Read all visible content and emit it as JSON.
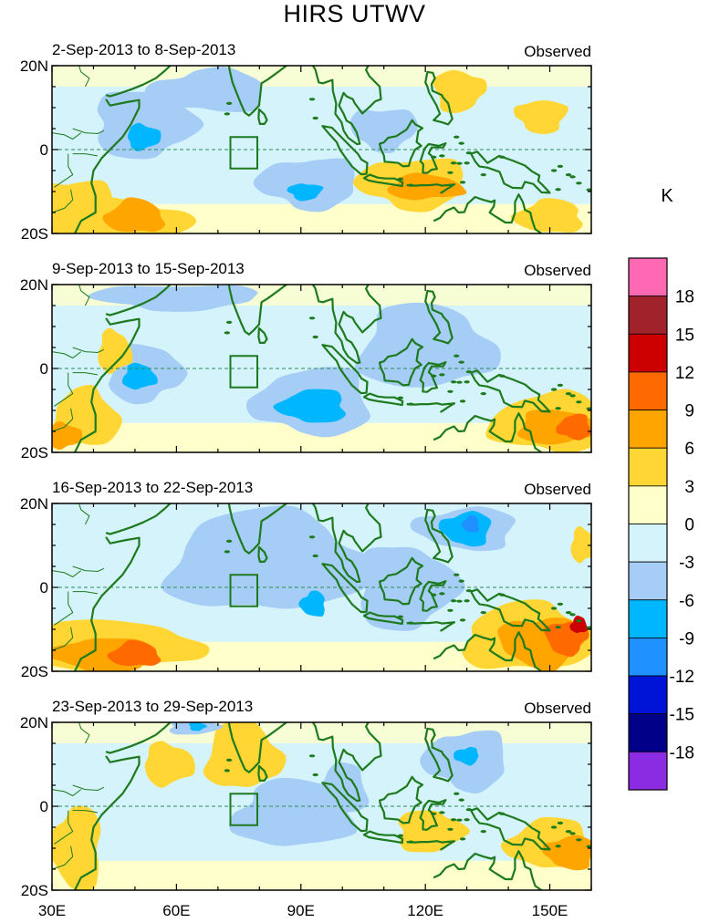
{
  "title": "HIRS UTWV",
  "units": "K",
  "colorbar": {
    "labels": [
      "18",
      "15",
      "12",
      "9",
      "6",
      "3",
      "0",
      "-3",
      "-6",
      "-9",
      "-12",
      "-15",
      "-18"
    ],
    "colors": [
      "#ff69b4",
      "#a0222a",
      "#cc0000",
      "#ff6a00",
      "#ffa500",
      "#ffd633",
      "#ffffcc",
      "#d4f3fb",
      "#a5cdf6",
      "#00b7ff",
      "#1e90ff",
      "#0014d8",
      "#000088",
      "#8b2be2"
    ]
  },
  "axes": {
    "x_ticks": [
      "30E",
      "60E",
      "90E",
      "120E",
      "150E"
    ],
    "y_ticks": [
      "20N",
      "0",
      "20S"
    ]
  },
  "panels": [
    {
      "period": "2-Sep-2013 to 8-Sep-2013",
      "label": "Observed"
    },
    {
      "period": "9-Sep-2013 to 15-Sep-2013",
      "label": "Observed"
    },
    {
      "period": "16-Sep-2013 to 22-Sep-2013",
      "label": "Observed"
    },
    {
      "period": "23-Sep-2013 to 29-Sep-2013",
      "label": "Observed"
    }
  ],
  "map_colors": {
    "coast": "#1e7a1e",
    "equator": "#2e8b57",
    "neutral_neg": "#d4f3fb",
    "neutral_pos": "#ffffcc",
    "light_blue": "#a5cdf6",
    "mid_blue": "#00b7ff",
    "blue": "#1e90ff",
    "yellow": "#ffd633",
    "orange": "#ffa500",
    "dark_orange": "#ff6a00",
    "red": "#cc0000",
    "dark_red": "#a0222a"
  },
  "anomaly_regions": [
    [
      {
        "color": "yellow",
        "lon": 35,
        "lat": -14,
        "rlon": 10,
        "rlat": 7
      },
      {
        "color": "yellow",
        "lon": 45,
        "lat": -17,
        "rlon": 18,
        "rlat": 5
      },
      {
        "color": "orange",
        "lon": 50,
        "lat": -16,
        "rlon": 7,
        "rlat": 4
      },
      {
        "color": "light_blue",
        "lon": 52,
        "lat": 6,
        "rlon": 12,
        "rlat": 8
      },
      {
        "color": "mid_blue",
        "lon": 52,
        "lat": 3,
        "rlon": 4,
        "rlat": 3
      },
      {
        "color": "light_blue",
        "lon": 92,
        "lat": -8,
        "rlon": 12,
        "rlat": 6
      },
      {
        "color": "mid_blue",
        "lon": 91,
        "lat": -10,
        "rlon": 4,
        "rlat": 2
      },
      {
        "color": "light_blue",
        "lon": 68,
        "lat": 14,
        "rlon": 14,
        "rlat": 5
      },
      {
        "color": "yellow",
        "lon": 117,
        "lat": -8,
        "rlon": 13,
        "rlat": 6
      },
      {
        "color": "orange",
        "lon": 120,
        "lat": -9,
        "rlon": 9,
        "rlat": 3
      },
      {
        "color": "yellow",
        "lon": 128,
        "lat": 14,
        "rlon": 6,
        "rlat": 5
      },
      {
        "color": "yellow",
        "lon": 148,
        "lat": 8,
        "rlon": 6,
        "rlat": 4
      },
      {
        "color": "light_blue",
        "lon": 110,
        "lat": 5,
        "rlon": 8,
        "rlat": 5
      },
      {
        "color": "yellow",
        "lon": 150,
        "lat": -16,
        "rlon": 8,
        "rlat": 4
      }
    ],
    [
      {
        "color": "light_blue",
        "lon": 52,
        "lat": -1,
        "rlon": 9,
        "rlat": 7
      },
      {
        "color": "mid_blue",
        "lon": 51,
        "lat": -2,
        "rlon": 4,
        "rlat": 3
      },
      {
        "color": "light_blue",
        "lon": 93,
        "lat": -8,
        "rlon": 14,
        "rlat": 8
      },
      {
        "color": "mid_blue",
        "lon": 93,
        "lat": -9,
        "rlon": 8,
        "rlat": 4
      },
      {
        "color": "light_blue",
        "lon": 120,
        "lat": 5,
        "rlon": 16,
        "rlat": 10
      },
      {
        "color": "light_blue",
        "lon": 60,
        "lat": 17,
        "rlon": 20,
        "rlat": 3
      },
      {
        "color": "yellow",
        "lon": 150,
        "lat": -13,
        "rlon": 14,
        "rlat": 7
      },
      {
        "color": "orange",
        "lon": 152,
        "lat": -14,
        "rlon": 10,
        "rlat": 4
      },
      {
        "color": "dark_orange",
        "lon": 156,
        "lat": -14,
        "rlon": 4,
        "rlat": 3
      },
      {
        "color": "yellow",
        "lon": 38,
        "lat": -12,
        "rlon": 8,
        "rlat": 7
      },
      {
        "color": "orange",
        "lon": 33,
        "lat": -16,
        "rlon": 4,
        "rlat": 3
      },
      {
        "color": "yellow",
        "lon": 45,
        "lat": 4,
        "rlon": 4,
        "rlat": 5
      }
    ],
    [
      {
        "color": "yellow",
        "lon": 45,
        "lat": -14,
        "rlon": 20,
        "rlat": 6
      },
      {
        "color": "orange",
        "lon": 42,
        "lat": -16,
        "rlon": 12,
        "rlat": 4
      },
      {
        "color": "dark_orange",
        "lon": 50,
        "lat": -16,
        "rlon": 6,
        "rlat": 3
      },
      {
        "color": "light_blue",
        "lon": 82,
        "lat": 6,
        "rlon": 24,
        "rlat": 12
      },
      {
        "color": "light_blue",
        "lon": 115,
        "lat": 0,
        "rlon": 12,
        "rlat": 10
      },
      {
        "color": "light_blue",
        "lon": 130,
        "lat": 14,
        "rlon": 12,
        "rlat": 5
      },
      {
        "color": "mid_blue",
        "lon": 130,
        "lat": 14,
        "rlon": 6,
        "rlat": 4
      },
      {
        "color": "blue",
        "lon": 131,
        "lat": 15,
        "rlon": 2,
        "rlat": 2
      },
      {
        "color": "mid_blue",
        "lon": 93,
        "lat": -4,
        "rlon": 3,
        "rlat": 3
      },
      {
        "color": "yellow",
        "lon": 145,
        "lat": -12,
        "rlon": 16,
        "rlat": 8
      },
      {
        "color": "orange",
        "lon": 148,
        "lat": -13,
        "rlon": 10,
        "rlat": 6
      },
      {
        "color": "dark_orange",
        "lon": 154,
        "lat": -12,
        "rlon": 5,
        "rlat": 4
      },
      {
        "color": "red",
        "lon": 157,
        "lat": -9,
        "rlon": 2,
        "rlat": 2
      },
      {
        "color": "yellow",
        "lon": 158,
        "lat": 10,
        "rlon": 3,
        "rlat": 4
      }
    ],
    [
      {
        "color": "yellow",
        "lon": 76,
        "lat": 12,
        "rlon": 9,
        "rlat": 8
      },
      {
        "color": "yellow",
        "lon": 36,
        "lat": -10,
        "rlon": 6,
        "rlat": 10
      },
      {
        "color": "yellow",
        "lon": 58,
        "lat": 10,
        "rlon": 6,
        "rlat": 5
      },
      {
        "color": "light_blue",
        "lon": 88,
        "lat": -2,
        "rlon": 14,
        "rlat": 8
      },
      {
        "color": "light_blue",
        "lon": 130,
        "lat": 11,
        "rlon": 10,
        "rlat": 7
      },
      {
        "color": "mid_blue",
        "lon": 130,
        "lat": 12,
        "rlon": 3,
        "rlat": 2
      },
      {
        "color": "light_blue",
        "lon": 64,
        "lat": 19,
        "rlon": 6,
        "rlat": 2
      },
      {
        "color": "mid_blue",
        "lon": 65,
        "lat": 19,
        "rlon": 2,
        "rlat": 1
      },
      {
        "color": "yellow",
        "lon": 121,
        "lat": -6,
        "rlon": 8,
        "rlat": 5
      },
      {
        "color": "yellow",
        "lon": 150,
        "lat": -9,
        "rlon": 10,
        "rlat": 6
      },
      {
        "color": "orange",
        "lon": 155,
        "lat": -11,
        "rlon": 6,
        "rlat": 4
      },
      {
        "color": "light_blue",
        "lon": 100,
        "lat": 4,
        "rlon": 6,
        "rlat": 6
      }
    ]
  ]
}
